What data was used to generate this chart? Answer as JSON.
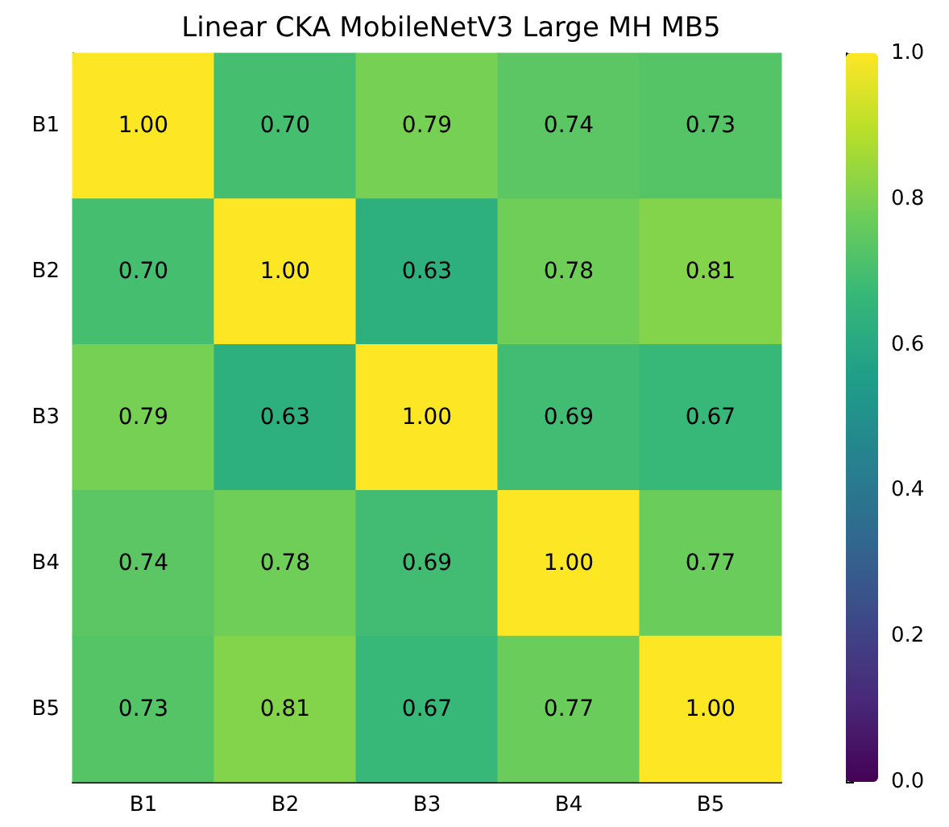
{
  "chart_data": {
    "type": "heatmap",
    "title": "Linear CKA MobileNetV3 Large MH MB5",
    "categories": [
      "B1",
      "B2",
      "B3",
      "B4",
      "B5"
    ],
    "y_categories": [
      "B1",
      "B2",
      "B3",
      "B4",
      "B5"
    ],
    "cells": [
      [
        1.0,
        0.7,
        0.79,
        0.74,
        0.73
      ],
      [
        0.7,
        1.0,
        0.63,
        0.78,
        0.81
      ],
      [
        0.79,
        0.63,
        1.0,
        0.69,
        0.67
      ],
      [
        0.74,
        0.78,
        0.69,
        1.0,
        0.77
      ],
      [
        0.73,
        0.81,
        0.67,
        0.77,
        1.0
      ]
    ],
    "cell_labels": [
      [
        "1.00",
        "0.70",
        "0.79",
        "0.74",
        "0.73"
      ],
      [
        "0.70",
        "1.00",
        "0.63",
        "0.78",
        "0.81"
      ],
      [
        "0.79",
        "0.63",
        "1.00",
        "0.69",
        "0.67"
      ],
      [
        "0.74",
        "0.78",
        "0.69",
        "1.00",
        "0.77"
      ],
      [
        "0.73",
        "0.81",
        "0.67",
        "0.77",
        "1.00"
      ]
    ],
    "clim": [
      0,
      1
    ],
    "cticks": [
      {
        "value": 0,
        "label": "0.0"
      },
      {
        "value": 0.2,
        "label": "0.2"
      },
      {
        "value": 0.4,
        "label": "0.4"
      },
      {
        "value": 0.6,
        "label": "0.6"
      },
      {
        "value": 0.8,
        "label": "0.8"
      },
      {
        "value": 1,
        "label": "1.0"
      }
    ]
  }
}
